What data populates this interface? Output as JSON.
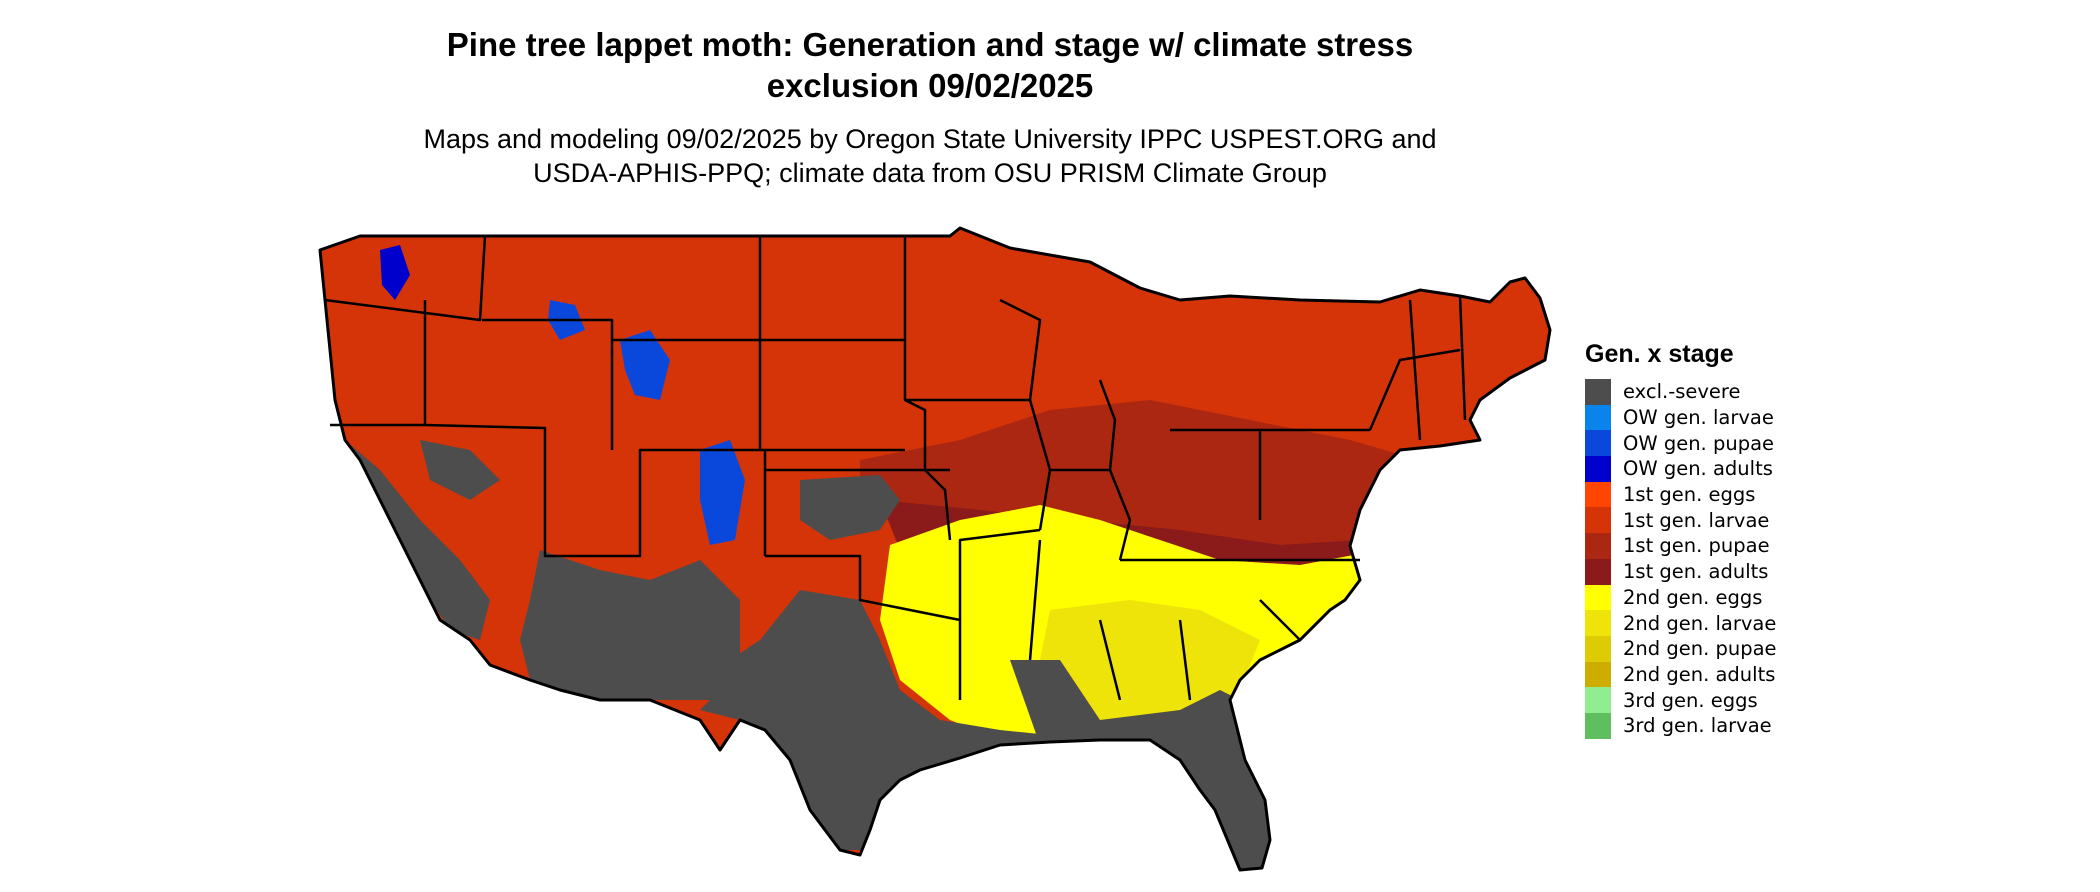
{
  "title_line1": "Pine tree lappet moth: Generation and stage w/ climate stress",
  "title_line2": "exclusion 09/02/2025",
  "subtitle_line1": "Maps and modeling 09/02/2025 by Oregon State University IPPC USPEST.ORG and",
  "subtitle_line2": "USDA-APHIS-PPQ; climate data from OSU PRISM Climate Group",
  "legend": {
    "title": "Gen. x stage",
    "items": [
      {
        "label": "excl.-severe",
        "color": "#4d4d4d"
      },
      {
        "label": "OW gen. larvae",
        "color": "#0a84ea"
      },
      {
        "label": "OW gen. pupae",
        "color": "#0a48dc"
      },
      {
        "label": "OW gen. adults",
        "color": "#0000cc"
      },
      {
        "label": "1st gen. eggs",
        "color": "#ff4500"
      },
      {
        "label": "1st gen. larvae",
        "color": "#d53408"
      },
      {
        "label": "1st gen. pupae",
        "color": "#ac2711"
      },
      {
        "label": "1st gen. adults",
        "color": "#8b1a1a"
      },
      {
        "label": "2nd gen. eggs",
        "color": "#ffff00"
      },
      {
        "label": "2nd gen. larvae",
        "color": "#eee40a"
      },
      {
        "label": "2nd gen. pupae",
        "color": "#ddcb05"
      },
      {
        "label": "2nd gen. adults",
        "color": "#cdad00"
      },
      {
        "label": "3rd gen. eggs",
        "color": "#90ee90"
      },
      {
        "label": "3rd gen. larvae",
        "color": "#5fbf5f"
      }
    ]
  }
}
